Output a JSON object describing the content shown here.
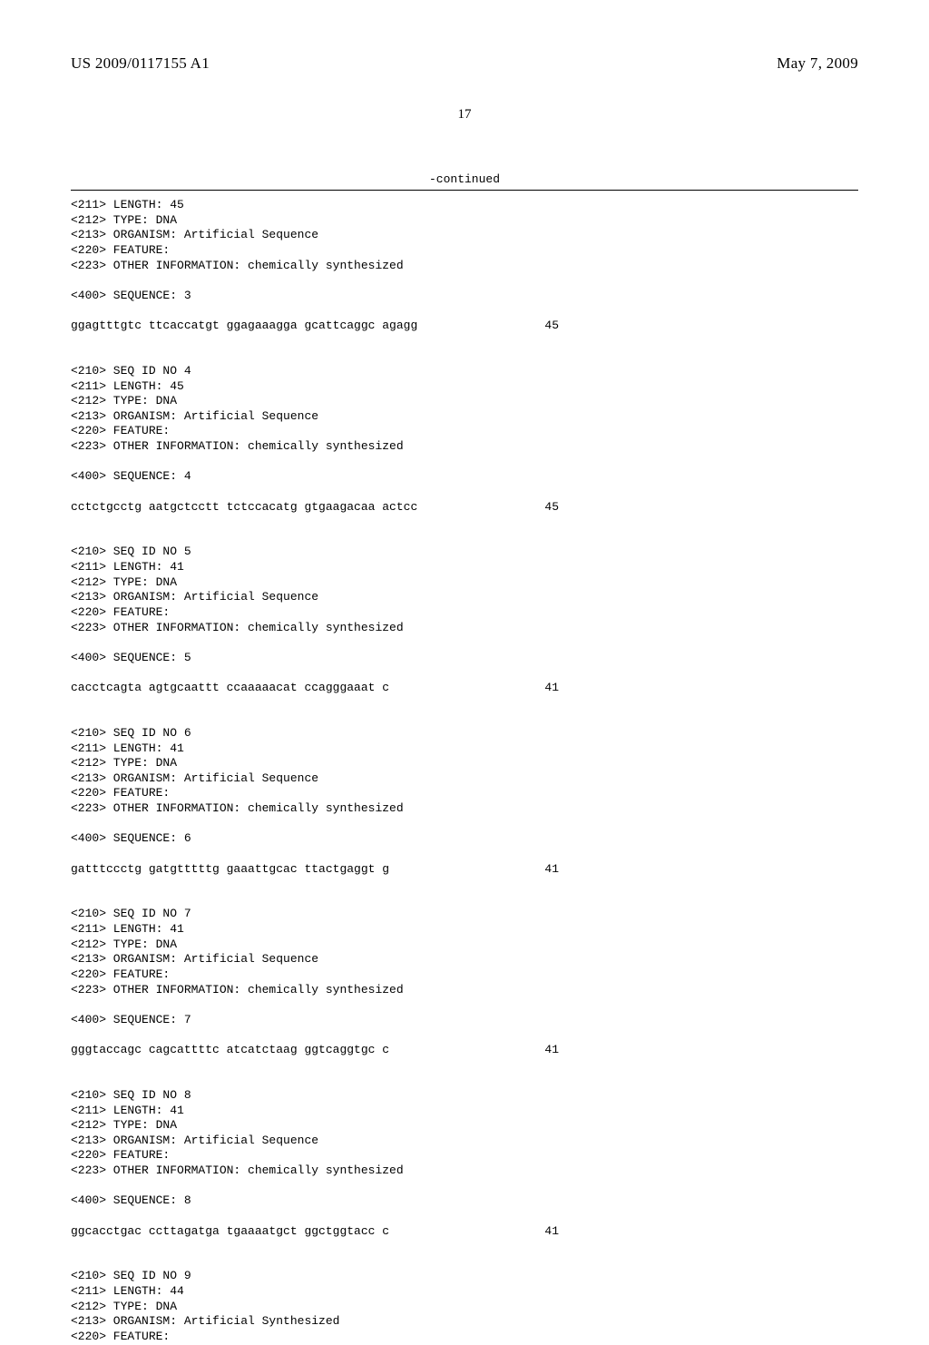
{
  "header": {
    "publication_number": "US 2009/0117155 A1",
    "publication_date": "May 7, 2009"
  },
  "page_number": "17",
  "continued_label": "-continued",
  "sequences": [
    {
      "header_lines": [
        "<211> LENGTH: 45",
        "<212> TYPE: DNA",
        "<213> ORGANISM: Artificial Sequence",
        "<220> FEATURE:",
        "<223> OTHER INFORMATION: chemically synthesized"
      ],
      "sequence_label": "<400> SEQUENCE: 3",
      "sequence_data": "ggagtttgtc ttcaccatgt ggagaaagga gcattcaggc agagg",
      "count": "45"
    },
    {
      "header_lines": [
        "<210> SEQ ID NO 4",
        "<211> LENGTH: 45",
        "<212> TYPE: DNA",
        "<213> ORGANISM: Artificial Sequence",
        "<220> FEATURE:",
        "<223> OTHER INFORMATION: chemically synthesized"
      ],
      "sequence_label": "<400> SEQUENCE: 4",
      "sequence_data": "cctctgcctg aatgctcctt tctccacatg gtgaagacaa actcc",
      "count": "45"
    },
    {
      "header_lines": [
        "<210> SEQ ID NO 5",
        "<211> LENGTH: 41",
        "<212> TYPE: DNA",
        "<213> ORGANISM: Artificial Sequence",
        "<220> FEATURE:",
        "<223> OTHER INFORMATION: chemically synthesized"
      ],
      "sequence_label": "<400> SEQUENCE: 5",
      "sequence_data": "cacctcagta agtgcaattt ccaaaaacat ccagggaaat c",
      "count": "41"
    },
    {
      "header_lines": [
        "<210> SEQ ID NO 6",
        "<211> LENGTH: 41",
        "<212> TYPE: DNA",
        "<213> ORGANISM: Artificial Sequence",
        "<220> FEATURE:",
        "<223> OTHER INFORMATION: chemically synthesized"
      ],
      "sequence_label": "<400> SEQUENCE: 6",
      "sequence_data": "gatttccctg gatgtttttg gaaattgcac ttactgaggt g",
      "count": "41"
    },
    {
      "header_lines": [
        "<210> SEQ ID NO 7",
        "<211> LENGTH: 41",
        "<212> TYPE: DNA",
        "<213> ORGANISM: Artificial Sequence",
        "<220> FEATURE:",
        "<223> OTHER INFORMATION: chemically synthesized"
      ],
      "sequence_label": "<400> SEQUENCE: 7",
      "sequence_data": "gggtaccagc cagcattttc atcatctaag ggtcaggtgc c",
      "count": "41"
    },
    {
      "header_lines": [
        "<210> SEQ ID NO 8",
        "<211> LENGTH: 41",
        "<212> TYPE: DNA",
        "<213> ORGANISM: Artificial Sequence",
        "<220> FEATURE:",
        "<223> OTHER INFORMATION: chemically synthesized"
      ],
      "sequence_label": "<400> SEQUENCE: 8",
      "sequence_data": "ggcacctgac ccttagatga tgaaaatgct ggctggtacc c",
      "count": "41"
    },
    {
      "header_lines": [
        "<210> SEQ ID NO 9",
        "<211> LENGTH: 44",
        "<212> TYPE: DNA",
        "<213> ORGANISM: Artificial Synthesized",
        "<220> FEATURE:"
      ],
      "sequence_label": null,
      "sequence_data": null,
      "count": null
    }
  ]
}
